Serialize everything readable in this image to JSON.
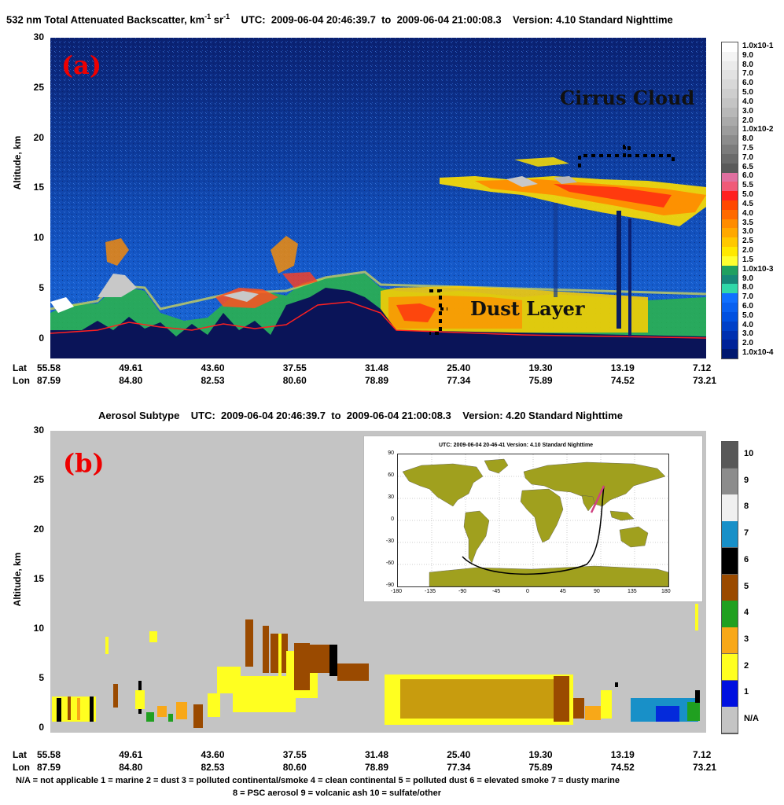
{
  "chart_data": [
    {
      "type": "heatmap",
      "title": "532 nm Total Attenuated Backscatter, km",
      "title_sup1": "-1",
      "title_mid": " sr",
      "title_sup2": "-1",
      "utc_label": "UTC:",
      "utc_start": "2009-06-04 20:46:39.7",
      "utc_to": "to",
      "utc_end": "2009-06-04 21:00:08.3",
      "version_label": "Version: 4.10 Standard Nighttime",
      "panel_label": "(a)",
      "ylabel": "Altitude, km",
      "ylim": [
        -2,
        30
      ],
      "yticks": [
        "30",
        "25",
        "20",
        "15",
        "10",
        "5",
        "0"
      ],
      "x_row_labels": [
        "Lat",
        "Lon"
      ],
      "lat": [
        "55.58",
        "49.61",
        "43.60",
        "37.55",
        "31.48",
        "25.40",
        "19.30",
        "13.19",
        "7.12"
      ],
      "lon": [
        "87.59",
        "84.80",
        "82.53",
        "80.60",
        "78.89",
        "77.34",
        "75.89",
        "74.52",
        "73.21"
      ],
      "annotations": [
        "Cirrus Cloud",
        "Dust Layer"
      ],
      "colorbar_labels": [
        "1.0x10-1",
        "9.0",
        "8.0",
        "7.0",
        "6.0",
        "5.0",
        "4.0",
        "3.0",
        "2.0",
        "1.0x10-2",
        "8.0",
        "7.5",
        "7.0",
        "6.5",
        "6.0",
        "5.5",
        "5.0",
        "4.5",
        "4.0",
        "3.5",
        "3.0",
        "2.5",
        "2.0",
        "1.5",
        "1.0x10-3",
        "9.0",
        "8.0",
        "7.0",
        "6.0",
        "5.0",
        "4.0",
        "3.0",
        "2.0",
        "1.0x10-4"
      ],
      "colorbar_colors": [
        "#ffffff",
        "#f4f4f4",
        "#ebebeb",
        "#e2e2e2",
        "#d8d8d8",
        "#cecece",
        "#c4c4c4",
        "#b8b8b8",
        "#aaaaaa",
        "#9c9c9c",
        "#8c8c8c",
        "#7c7c7c",
        "#6b6b6b",
        "#5a5a5a",
        "#e070a0",
        "#f05a78",
        "#ff2020",
        "#ff4800",
        "#ff6a00",
        "#ff8c00",
        "#ffa800",
        "#ffc800",
        "#ffe800",
        "#ffff30",
        "#20a060",
        "#168878",
        "#30d8a8",
        "#1070ff",
        "#0860f0",
        "#0050e0",
        "#0040c8",
        "#0030b0",
        "#002298",
        "#001870"
      ]
    },
    {
      "type": "heatmap",
      "title": "Aerosol Subtype",
      "utc_label": "UTC:",
      "utc_start": "2009-06-04 20:46:39.7",
      "utc_to": "to",
      "utc_end": "2009-06-04 21:00:08.3",
      "version_label": "Version: 4.20 Standard Nighttime",
      "panel_label": "(b)",
      "ylabel": "Altitude, km",
      "ylim": [
        -0.5,
        30
      ],
      "yticks": [
        "30",
        "25",
        "20",
        "15",
        "10",
        "5",
        "0"
      ],
      "x_row_labels": [
        "Lat",
        "Lon"
      ],
      "lat": [
        "55.58",
        "49.61",
        "43.60",
        "37.55",
        "31.48",
        "25.40",
        "19.30",
        "13.19",
        "7.12"
      ],
      "lon": [
        "87.59",
        "84.80",
        "82.53",
        "80.60",
        "78.89",
        "77.34",
        "75.89",
        "74.52",
        "73.21"
      ],
      "colorbar_labels": [
        "10",
        "9",
        "8",
        "7",
        "6",
        "5",
        "4",
        "3",
        "2",
        "1",
        "N/A"
      ],
      "colorbar_colors": [
        "#585858",
        "#8c8c8c",
        "#f0f0f0",
        "#1890c8",
        "#000000",
        "#9a4a00",
        "#20a020",
        "#f8a818",
        "#ffff20",
        "#0010e0",
        "#c4c4c4"
      ],
      "legend_line1": "N/A = not applicable     1 = marine     2 = dust     3 = polluted continental/smoke     4 = clean continental     5 = polluted dust     6 = elevated smoke     7 = dusty marine",
      "legend_line2": "8 = PSC aerosol     9 = volcanic ash     10 = sulfate/other",
      "inset": {
        "title": "UTC: 2009-06-04  20-46-41    Version: 4.10  Standard    Nighttime",
        "yticks": [
          "90",
          "60",
          "30",
          "0",
          "-30",
          "-60",
          "-90"
        ],
        "xticks": [
          "-180",
          "-135",
          "-90",
          "-45",
          "0",
          "45",
          "90",
          "135",
          "180"
        ],
        "land_color": "#a0a01e",
        "track_color": "#000000",
        "track_highlight_color": "#d04080"
      }
    }
  ]
}
